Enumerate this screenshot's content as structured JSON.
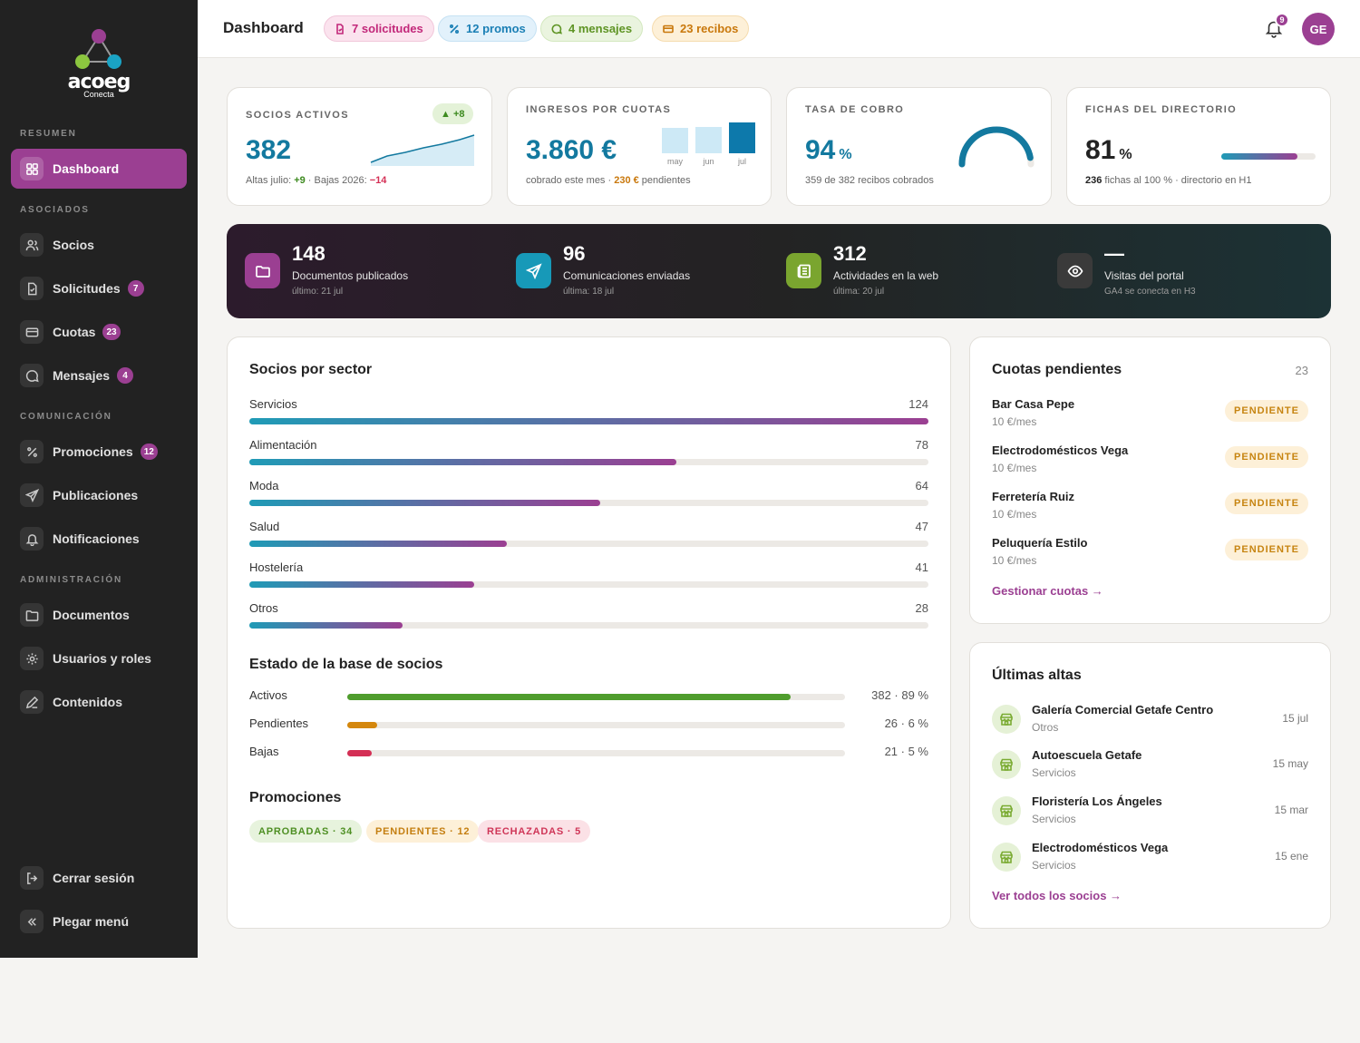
{
  "brand": {
    "name": "acoeg",
    "sub": "Conecta"
  },
  "sidebar": {
    "sections": [
      "RESUMEN",
      "ASOCIADOS",
      "COMUNICACIÓN",
      "ADMINISTRACIÓN"
    ],
    "items": [
      {
        "label": "Dashboard",
        "badge": ""
      },
      {
        "label": "Socios",
        "badge": ""
      },
      {
        "label": "Solicitudes",
        "badge": "7"
      },
      {
        "label": "Cuotas",
        "badge": "23"
      },
      {
        "label": "Mensajes",
        "badge": "4"
      },
      {
        "label": "Promociones",
        "badge": "12"
      },
      {
        "label": "Publicaciones",
        "badge": ""
      },
      {
        "label": "Notificaciones",
        "badge": ""
      },
      {
        "label": "Documentos",
        "badge": ""
      },
      {
        "label": "Usuarios y roles",
        "badge": ""
      },
      {
        "label": "Contenidos",
        "badge": ""
      }
    ],
    "logout": "Cerrar sesión",
    "collapse": "Plegar menú"
  },
  "header": {
    "title": "Dashboard",
    "chips": [
      {
        "num": "7",
        "label": "solicitudes",
        "color": "#c2287a"
      },
      {
        "num": "12",
        "label": "promos",
        "color": "#1a7fb5"
      },
      {
        "num": "4",
        "label": "mensajes",
        "color": "#5e9424"
      },
      {
        "num": "23",
        "label": "recibos",
        "color": "#c9780c"
      }
    ],
    "notif_count": "9",
    "user_initials": "GE"
  },
  "kpis": {
    "socios": {
      "label": "SOCIOS ACTIVOS",
      "value": "382",
      "delta": "▲ +8",
      "sub_a": "Altas julio: ",
      "sub_b": "+9",
      "sub_c": " · Bajas 2026: ",
      "sub_d": "−14"
    },
    "ingresos": {
      "label": "INGRESOS POR CUOTAS",
      "value": "3.860 €",
      "sub_a": "cobrado este mes · ",
      "sub_b": "230 €",
      "sub_c": " pendientes",
      "bars": [
        {
          "label": "may",
          "value": 0.78
        },
        {
          "label": "jun",
          "value": 0.8
        },
        {
          "label": "jul",
          "value": 0.95
        }
      ]
    },
    "tasa": {
      "label": "TASA DE COBRO",
      "value": "94",
      "unit": "%",
      "sub": "359 de 382 recibos cobrados",
      "pct": 94
    },
    "fichas": {
      "label": "FICHAS DEL DIRECTORIO",
      "value": "81",
      "unit": "%",
      "sub_a": "236",
      "sub_b": " fichas al 100 % · directorio en H1",
      "pct": 81
    }
  },
  "banner": [
    {
      "num": "148",
      "label": "Documentos publicados",
      "sub": "último: 21 jul",
      "color": "#9b3f92"
    },
    {
      "num": "96",
      "label": "Comunicaciones enviadas",
      "sub": "última: 18 jul",
      "color": "#1799b8"
    },
    {
      "num": "312",
      "label": "Actividades en la web",
      "sub": "última: 20 jul",
      "color": "#7aa52f"
    },
    {
      "num": "—",
      "label": "Visitas del portal",
      "sub": "GA4 se conecta en H3",
      "color": "#3a3a3a"
    }
  ],
  "sectors": {
    "title": "Socios por sector",
    "rows": [
      {
        "name": "Servicios",
        "value": 124
      },
      {
        "name": "Alimentación",
        "value": 78
      },
      {
        "name": "Moda",
        "value": 64
      },
      {
        "name": "Salud",
        "value": 47
      },
      {
        "name": "Hostelería",
        "value": 41
      },
      {
        "name": "Otros",
        "value": 28
      }
    ]
  },
  "estado": {
    "title": "Estado de la base de socios",
    "rows": [
      {
        "name": "Activos",
        "label": "382 · 89 %",
        "pct": 89,
        "color": "#4f9d2d"
      },
      {
        "name": "Pendientes",
        "label": "26 · 6 %",
        "pct": 6,
        "color": "#d4870d"
      },
      {
        "name": "Bajas",
        "label": "21 · 5 %",
        "pct": 5,
        "color": "#d42f55"
      }
    ]
  },
  "promos": {
    "title": "Promociones",
    "chips": [
      {
        "label": "APROBADAS · 34",
        "bg": "#e7f3dd",
        "fg": "#4e8f23"
      },
      {
        "label": "PENDIENTES · 12",
        "bg": "#fdf0d8",
        "fg": "#c47e10"
      },
      {
        "label": "RECHAZADAS · 5",
        "bg": "#fbe1e6",
        "fg": "#cf3658"
      }
    ]
  },
  "cuotas": {
    "title": "Cuotas pendientes",
    "count": "23",
    "rows": [
      {
        "name": "Bar Casa Pepe",
        "sub": "10 €/mes",
        "status": "PENDIENTE"
      },
      {
        "name": "Electrodomésticos Vega",
        "sub": "10 €/mes",
        "status": "PENDIENTE"
      },
      {
        "name": "Ferretería Ruiz",
        "sub": "10 €/mes",
        "status": "PENDIENTE"
      },
      {
        "name": "Peluquería Estilo",
        "sub": "10 €/mes",
        "status": "PENDIENTE"
      }
    ],
    "link": "Gestionar cuotas →"
  },
  "altas": {
    "title": "Últimas altas",
    "rows": [
      {
        "name": "Galería Comercial Getafe Centro",
        "sub": "Otros",
        "date": "15 jul"
      },
      {
        "name": "Autoescuela Getafe",
        "sub": "Servicios",
        "date": "15 may"
      },
      {
        "name": "Floristería Los Ángeles",
        "sub": "Servicios",
        "date": "15 mar"
      },
      {
        "name": "Electrodomésticos Vega",
        "sub": "Servicios",
        "date": "15 ene"
      }
    ],
    "link": "Ver todos los socios →"
  }
}
